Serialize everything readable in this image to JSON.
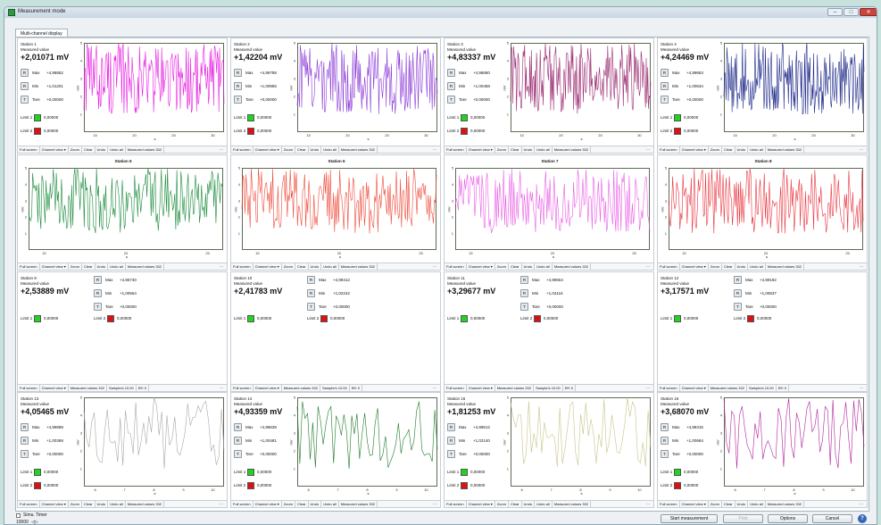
{
  "window": {
    "title": "Measurement mode",
    "min": "–",
    "max": "□",
    "close": "✕"
  },
  "tab": "Multi-channel display",
  "common": {
    "measured_value": "Measured value",
    "r": "R",
    "t": "T",
    "max": "Max",
    "min": "Min",
    "tare": "Tare",
    "limit1": "Limit 1",
    "limit2": "Limit 2",
    "limit_value": "0,00000",
    "xlabel": "s",
    "ylabel": "mV"
  },
  "toolbar": {
    "graph": [
      "Full screen",
      "Channel view ▾",
      "Zoom",
      "Clear",
      "Undo",
      "Undo all",
      "Measured values 332"
    ],
    "values": [
      "Full screen",
      "Channel view ▾",
      "Measured values 332",
      "Sample/s 10.00",
      "Eff: 0"
    ]
  },
  "colors": {
    "green": "#1fd61f",
    "red": "#e01010"
  },
  "stations": [
    {
      "name": "Station 1",
      "value": "+2,01071 mV",
      "max": "+4,98852",
      "min": "+1,01201",
      "tare": "+0,00000",
      "color": "#e61ee0",
      "title": ""
    },
    {
      "name": "Station 2",
      "value": "+1,42204 mV",
      "max": "+4,99788",
      "min": "+1,00955",
      "tare": "+0,00000",
      "color": "#8a3ad6",
      "title": ""
    },
    {
      "name": "Station 3",
      "value": "+4,83337 mV",
      "max": "+4,98680",
      "min": "+1,00468",
      "tare": "+0,00000",
      "color": "#9a2a70",
      "title": ""
    },
    {
      "name": "Station 4",
      "value": "+4,24469 mV",
      "max": "+4,99853",
      "min": "+1,00634",
      "tare": "+0,00000",
      "color": "#1f2a8a",
      "title": ""
    },
    {
      "name": "Station 5",
      "title": "Station 5",
      "color": "#1a8a3a"
    },
    {
      "name": "Station 6",
      "title": "Station 6",
      "color": "#ee4a3a"
    },
    {
      "name": "Station 7",
      "title": "Station 7",
      "color": "#e85ee5"
    },
    {
      "name": "Station 8",
      "title": "Station 8",
      "color": "#e8343f"
    },
    {
      "name": "Station 9",
      "value": "+2,53889 mV",
      "max": "+4,96730",
      "min": "+1,00564",
      "tare": "+0,00000"
    },
    {
      "name": "Station 10",
      "value": "+2,41783 mV",
      "max": "+4,99412",
      "min": "+1,02242",
      "tare": "+0,00000"
    },
    {
      "name": "Station 11",
      "value": "+3,29677 mV",
      "max": "+4,99654",
      "min": "+1,04116",
      "tare": "+0,00000"
    },
    {
      "name": "Station 12",
      "value": "+3,17571 mV",
      "max": "+4,99182",
      "min": "+1,00637",
      "tare": "+0,00000"
    },
    {
      "name": "Station 13",
      "value": "+4,05465 mV",
      "max": "+4,99898",
      "min": "+1,00368",
      "tare": "+0,00000",
      "color": "#a9a9a9",
      "title": ""
    },
    {
      "name": "Station 14",
      "value": "+4,93359 mV",
      "max": "+4,99639",
      "min": "+1,00481",
      "tare": "+0,00000",
      "color": "#1e7a28",
      "title": ""
    },
    {
      "name": "Station 15",
      "value": "+1,81253 mV",
      "max": "+4,99512",
      "min": "+1,02140",
      "tare": "+0,00000",
      "color": "#c9c48a",
      "title": ""
    },
    {
      "name": "Station 16",
      "value": "+3,68070 mV",
      "max": "+4,98315",
      "min": "+1,00684",
      "tare": "+0,00000",
      "color": "#b0249e",
      "title": ""
    }
  ],
  "chart_data": [
    {
      "type": "line",
      "rows": "top",
      "x_ticks": [
        "15",
        "20",
        "25",
        "30"
      ],
      "y_ticks": [
        "1",
        "2",
        "3",
        "4",
        "5"
      ],
      "ylim": [
        0,
        5
      ]
    },
    {
      "type": "line",
      "rows": "second",
      "x_ticks": [
        "15",
        "20",
        "25"
      ],
      "y_ticks": [
        "1",
        "2",
        "3",
        "4",
        "5"
      ],
      "ylim": [
        0,
        5
      ]
    },
    {
      "type": "line",
      "rows": "bottom",
      "x_ticks": [
        "6",
        "7",
        "8",
        "9",
        "10"
      ],
      "y_ticks": [
        "1",
        "2",
        "3",
        "4",
        "5"
      ],
      "ylim": [
        0,
        5
      ]
    }
  ],
  "status": {
    "sim_label": "Simu. Timer",
    "sim_value": "10000",
    "sim_unit": "◁▷"
  },
  "buttons": {
    "start": "Start measurement",
    "print": "Print",
    "options": "Options",
    "cancel": "Cancel",
    "help": "?"
  }
}
